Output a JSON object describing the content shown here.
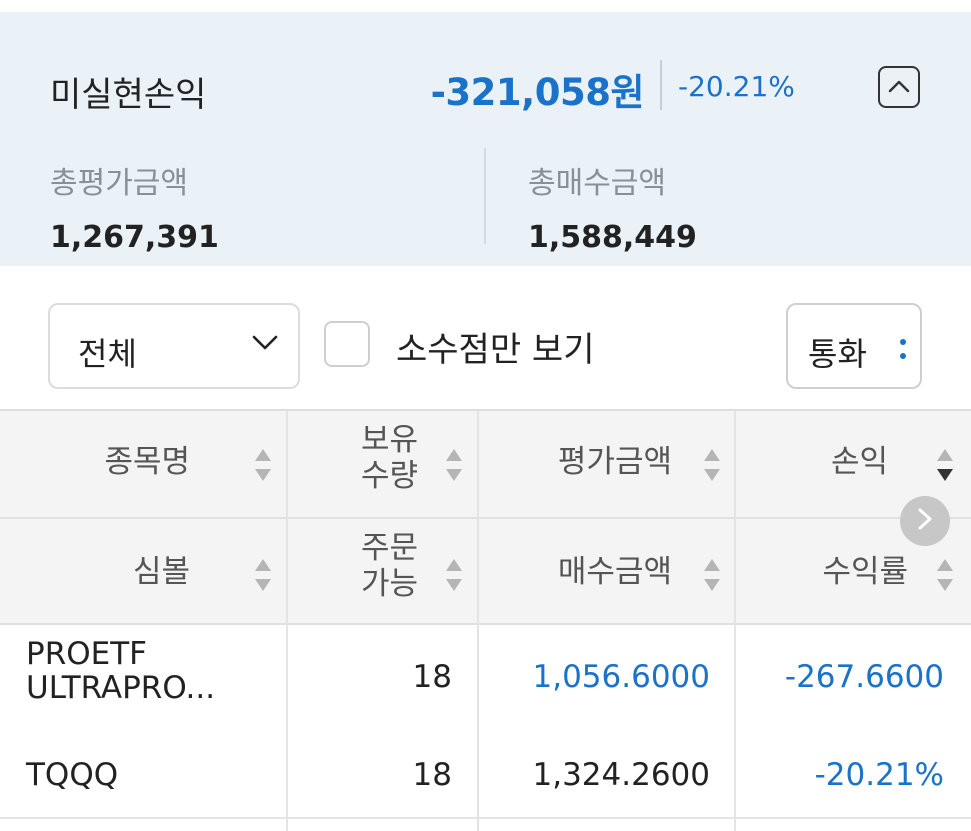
{
  "summary": {
    "title": "미실현손익",
    "pl_amount": "-321,058원",
    "pl_rate": "-20.21%",
    "collapse_icon": "chevron-up-icon",
    "eval_label": "총평가금액",
    "eval_value": "1,267,391",
    "buy_label": "총매수금액",
    "buy_value": "1,588,449"
  },
  "filters": {
    "category_selected": "전체",
    "decimal_only_label": "소수점만 보기",
    "decimal_only_checked": false,
    "currency_label": "통화"
  },
  "table": {
    "headers_top": [
      "종목명",
      "보유\n수량",
      "평가금액",
      "손익"
    ],
    "headers_bottom": [
      "심볼",
      "주문\n가능",
      "매수금액",
      "수익률"
    ],
    "rows": [
      {
        "name": "PROETF ULTRAPRO...",
        "name_line1": "PROETF",
        "name_line2": "ULTRAPRO...",
        "quantity": "18",
        "eval_amount": "1,056.6000",
        "profit": "-267.6600"
      },
      {
        "symbol": "TQQQ",
        "orderable": "18",
        "buy_amount": "1,324.2600",
        "rate": "-20.21%"
      }
    ]
  },
  "colors": {
    "accent": "#1a73c9",
    "summary_bg": "#eaf2f8",
    "header_bg": "#f4f4f4"
  }
}
